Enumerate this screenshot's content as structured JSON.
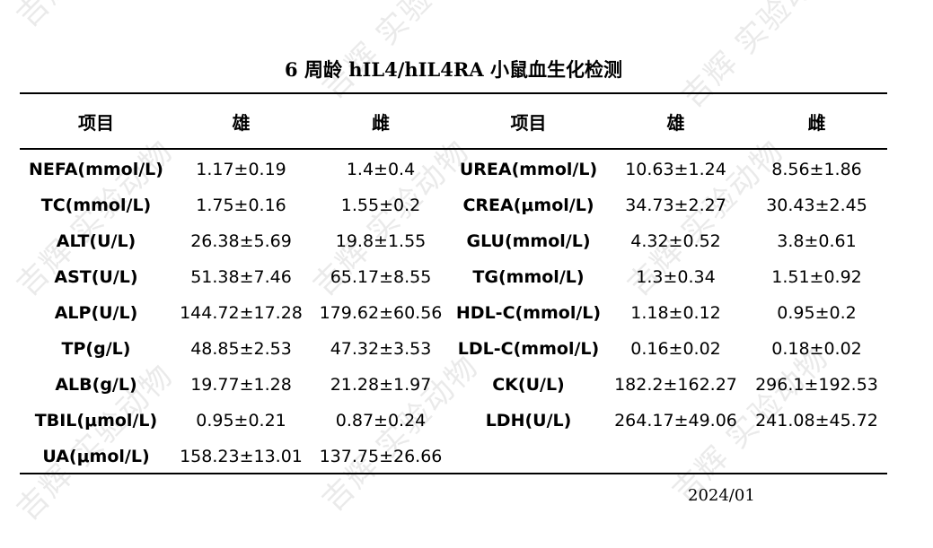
{
  "title": "6 周龄 hIL4/hIL4RA 小鼠血生化检测",
  "header": [
    "项目",
    "雄",
    "雌",
    "项目",
    "雄",
    "雌"
  ],
  "rows": [
    [
      "NEFA(mmol/L)",
      "1.17±0.19",
      "1.4±0.4",
      "UREA(mmol/L)",
      "10.63±1.24",
      "8.56±1.86"
    ],
    [
      "TC(mmol/L)",
      "1.75±0.16",
      "1.55±0.2",
      "CREA(μmol/L)",
      "34.73±2.27",
      "30.43±2.45"
    ],
    [
      "ALT(U/L)",
      "26.38±5.69",
      "19.8±1.55",
      "GLU(mmol/L)",
      "4.32±0.52",
      "3.8±0.61"
    ],
    [
      "AST(U/L)",
      "51.38±7.46",
      "65.17±8.55",
      "TG(mmol/L)",
      "1.3±0.34",
      "1.51±0.92"
    ],
    [
      "ALP(U/L)",
      "144.72±17.28",
      "179.62±60.56",
      "HDL-C(mmol/L)",
      "1.18±0.12",
      "0.95±0.2"
    ],
    [
      "TP(g/L)",
      "48.85±2.53",
      "47.32±3.53",
      "LDL-C(mmol/L)",
      "0.16±0.02",
      "0.18±0.02"
    ],
    [
      "ALB(g/L)",
      "19.77±1.28",
      "21.28±1.97",
      "CK(U/L)",
      "182.2±162.27",
      "296.1±192.53"
    ],
    [
      "TBIL(μmol/L)",
      "0.95±0.21",
      "0.87±0.24",
      "LDH(U/L)",
      "264.17±49.06",
      "241.08±45.72"
    ],
    [
      "UA(μmol/L)",
      "158.23±13.01",
      "137.75±26.66",
      "",
      "",
      ""
    ]
  ],
  "date": "2024/01",
  "watermark": "吉辉 实验动物"
}
